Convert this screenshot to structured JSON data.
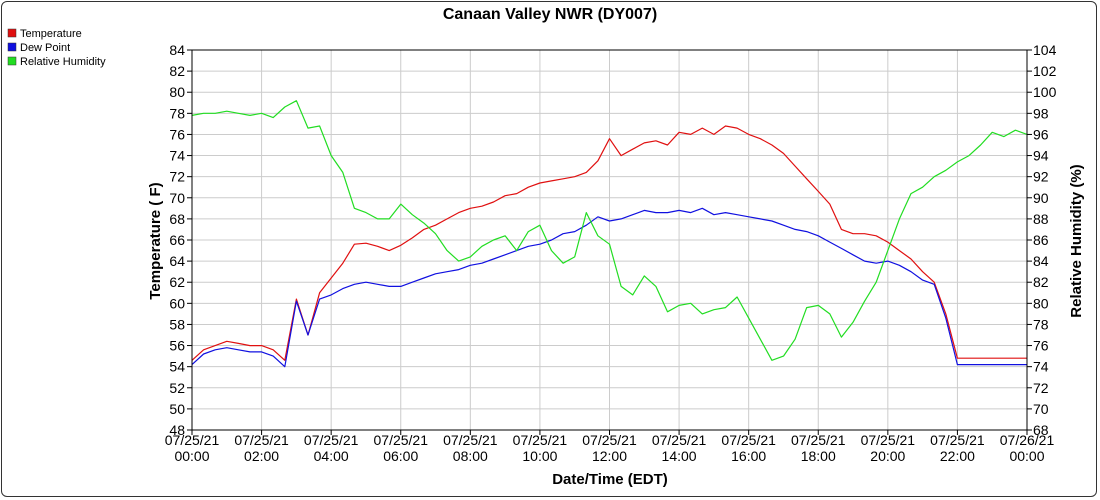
{
  "chart_data": {
    "type": "line",
    "title": "Canaan Valley NWR (DY007)",
    "xlabel": "Date/Time (EDT)",
    "ylabel": "Temperature ( F)",
    "y2label": "Relative Humidity (%)",
    "ylim": [
      48,
      84
    ],
    "y2lim": [
      68,
      104
    ],
    "grid": true,
    "legend_position": "top-left",
    "x_ticks": [
      {
        "date": "07/25/21",
        "time": "00:00"
      },
      {
        "date": "07/25/21",
        "time": "02:00"
      },
      {
        "date": "07/25/21",
        "time": "04:00"
      },
      {
        "date": "07/25/21",
        "time": "06:00"
      },
      {
        "date": "07/25/21",
        "time": "08:00"
      },
      {
        "date": "07/25/21",
        "time": "10:00"
      },
      {
        "date": "07/25/21",
        "time": "12:00"
      },
      {
        "date": "07/25/21",
        "time": "14:00"
      },
      {
        "date": "07/25/21",
        "time": "16:00"
      },
      {
        "date": "07/25/21",
        "time": "18:00"
      },
      {
        "date": "07/25/21",
        "time": "20:00"
      },
      {
        "date": "07/25/21",
        "time": "22:00"
      },
      {
        "date": "07/26/21",
        "time": "00:00"
      }
    ],
    "y_ticks": [
      48,
      50,
      52,
      54,
      56,
      58,
      60,
      62,
      64,
      66,
      68,
      70,
      72,
      74,
      76,
      78,
      80,
      82,
      84
    ],
    "y2_ticks": [
      68,
      70,
      72,
      74,
      76,
      78,
      80,
      82,
      84,
      86,
      88,
      90,
      92,
      94,
      96,
      98,
      100,
      102,
      104
    ],
    "series": [
      {
        "name": "Temperature",
        "axis": "left",
        "color": "#e01010",
        "x": [
          "00:00",
          "00:20",
          "00:40",
          "01:00",
          "01:20",
          "01:40",
          "02:00",
          "02:20",
          "02:40",
          "03:00",
          "03:20",
          "03:40",
          "04:00",
          "04:20",
          "04:40",
          "05:00",
          "05:20",
          "05:40",
          "06:00",
          "06:20",
          "06:40",
          "07:00",
          "07:20",
          "07:40",
          "08:00",
          "08:20",
          "08:40",
          "09:00",
          "09:20",
          "09:40",
          "10:00",
          "10:20",
          "10:40",
          "11:00",
          "11:20",
          "11:40",
          "12:00",
          "12:20",
          "12:40",
          "13:00",
          "13:20",
          "13:40",
          "14:00",
          "14:20",
          "14:40",
          "15:00",
          "15:20",
          "15:40",
          "16:00",
          "16:20",
          "16:40",
          "17:00",
          "17:20",
          "17:40",
          "18:00",
          "18:20",
          "18:40",
          "19:00",
          "19:20",
          "19:40",
          "20:00",
          "20:20",
          "20:40",
          "21:00",
          "21:20",
          "21:40",
          "22:00",
          "22:20",
          "22:40",
          "23:00",
          "23:20",
          "23:40",
          "24:00"
        ],
        "values": [
          54.6,
          55.6,
          56.0,
          56.4,
          56.2,
          56.0,
          56.0,
          55.6,
          54.6,
          60.4,
          57.0,
          61.0,
          62.4,
          63.8,
          65.6,
          65.7,
          65.4,
          65.0,
          65.5,
          66.2,
          67.0,
          67.4,
          68.0,
          68.6,
          69.0,
          69.2,
          69.6,
          70.2,
          70.4,
          71.0,
          71.4,
          71.6,
          71.8,
          72.0,
          72.4,
          73.5,
          75.6,
          74.0,
          74.6,
          75.2,
          75.4,
          75.0,
          76.2,
          76.0,
          76.6,
          76.0,
          76.8,
          76.6,
          76.0,
          75.6,
          75.0,
          74.2,
          73.0,
          71.8,
          70.6,
          69.4,
          67.0,
          66.6,
          66.6,
          66.4,
          65.8,
          65.0,
          64.2,
          63.0,
          62.0,
          59.0,
          54.8,
          54.8,
          54.8,
          54.8,
          54.8,
          54.8,
          54.8
        ]
      },
      {
        "name": "Dew Point",
        "axis": "left",
        "color": "#1010e0",
        "x": [
          "00:00",
          "00:20",
          "00:40",
          "01:00",
          "01:20",
          "01:40",
          "02:00",
          "02:20",
          "02:40",
          "03:00",
          "03:20",
          "03:40",
          "04:00",
          "04:20",
          "04:40",
          "05:00",
          "05:20",
          "05:40",
          "06:00",
          "06:20",
          "06:40",
          "07:00",
          "07:20",
          "07:40",
          "08:00",
          "08:20",
          "08:40",
          "09:00",
          "09:20",
          "09:40",
          "10:00",
          "10:20",
          "10:40",
          "11:00",
          "11:20",
          "11:40",
          "12:00",
          "12:20",
          "12:40",
          "13:00",
          "13:20",
          "13:40",
          "14:00",
          "14:20",
          "14:40",
          "15:00",
          "15:20",
          "15:40",
          "16:00",
          "16:20",
          "16:40",
          "17:00",
          "17:20",
          "17:40",
          "18:00",
          "18:20",
          "18:40",
          "19:00",
          "19:20",
          "19:40",
          "20:00",
          "20:20",
          "20:40",
          "21:00",
          "21:20",
          "21:40",
          "22:00",
          "22:20",
          "22:40",
          "23:00",
          "23:20",
          "23:40",
          "24:00"
        ],
        "values": [
          54.2,
          55.2,
          55.6,
          55.8,
          55.6,
          55.4,
          55.4,
          55.0,
          54.0,
          60.2,
          57.0,
          60.4,
          60.8,
          61.4,
          61.8,
          62.0,
          61.8,
          61.6,
          61.6,
          62.0,
          62.4,
          62.8,
          63.0,
          63.2,
          63.6,
          63.8,
          64.2,
          64.6,
          65.0,
          65.4,
          65.6,
          66.0,
          66.6,
          66.8,
          67.4,
          68.2,
          67.8,
          68.0,
          68.4,
          68.8,
          68.6,
          68.6,
          68.8,
          68.6,
          69.0,
          68.4,
          68.6,
          68.4,
          68.2,
          68.0,
          67.8,
          67.4,
          67.0,
          66.8,
          66.4,
          65.8,
          65.2,
          64.6,
          64.0,
          63.8,
          64.0,
          63.6,
          63.0,
          62.2,
          61.8,
          58.6,
          54.2,
          54.2,
          54.2,
          54.2,
          54.2,
          54.2,
          54.2
        ]
      },
      {
        "name": "Relative Humidity",
        "axis": "right",
        "color": "#22dd22",
        "x": [
          "00:00",
          "00:20",
          "00:40",
          "01:00",
          "01:20",
          "01:40",
          "02:00",
          "02:20",
          "02:40",
          "03:00",
          "03:20",
          "03:40",
          "04:00",
          "04:20",
          "04:40",
          "05:00",
          "05:20",
          "05:40",
          "06:00",
          "06:20",
          "06:40",
          "07:00",
          "07:20",
          "07:40",
          "08:00",
          "08:20",
          "08:40",
          "09:00",
          "09:20",
          "09:40",
          "10:00",
          "10:20",
          "10:40",
          "11:00",
          "11:20",
          "11:40",
          "12:00",
          "12:20",
          "12:40",
          "13:00",
          "13:20",
          "13:40",
          "14:00",
          "14:20",
          "14:40",
          "15:00",
          "15:20",
          "15:40",
          "16:00",
          "16:20",
          "16:40",
          "17:00",
          "17:20",
          "17:40",
          "18:00",
          "18:20",
          "18:40",
          "19:00",
          "19:20",
          "19:40",
          "20:00",
          "20:20",
          "20:40",
          "21:00",
          "21:20",
          "21:40",
          "22:00",
          "22:20",
          "22:40",
          "23:00",
          "23:20",
          "23:40",
          "24:00"
        ],
        "values": [
          97.8,
          98.0,
          98.0,
          98.2,
          98.0,
          97.8,
          98.0,
          97.6,
          98.6,
          99.2,
          96.6,
          96.8,
          94.0,
          92.4,
          89.0,
          88.6,
          88.0,
          88.0,
          89.4,
          88.4,
          87.6,
          86.6,
          85.0,
          84.0,
          84.4,
          85.4,
          86.0,
          86.4,
          85.0,
          86.8,
          87.4,
          85.0,
          83.8,
          84.4,
          88.6,
          86.4,
          85.6,
          81.6,
          80.8,
          82.6,
          81.6,
          79.2,
          79.8,
          80.0,
          79.0,
          79.4,
          79.6,
          80.6,
          78.6,
          76.6,
          74.6,
          75.0,
          76.6,
          79.6,
          79.8,
          79.0,
          76.8,
          78.2,
          80.2,
          82.0,
          85.0,
          88.0,
          90.4,
          91.0,
          92.0,
          92.6,
          93.4,
          94.0,
          95.0,
          96.2,
          95.8,
          96.4,
          96.0
        ]
      }
    ]
  }
}
